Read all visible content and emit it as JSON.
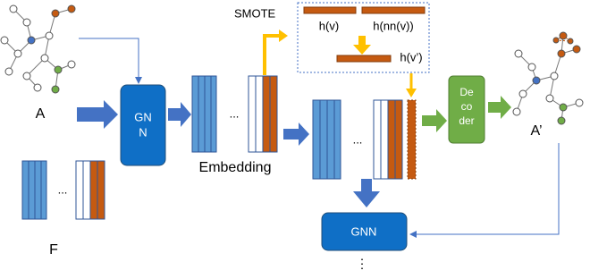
{
  "labels": {
    "a": "A",
    "gnn_top": [
      "GN",
      "N"
    ],
    "embedding": "Embedding",
    "smote": "SMOTE",
    "h_v": "h(v)",
    "h_nn_v": "h(nn(v))",
    "h_v_prime": "h(v’)",
    "decoder": [
      "De",
      "co",
      "der"
    ],
    "a_prime": "A’",
    "f": "F",
    "gnn_bottom": "GNN",
    "ellipsis": [
      "...",
      "...",
      "..."
    ],
    "vertical_ellipsis": "⋮"
  }
}
